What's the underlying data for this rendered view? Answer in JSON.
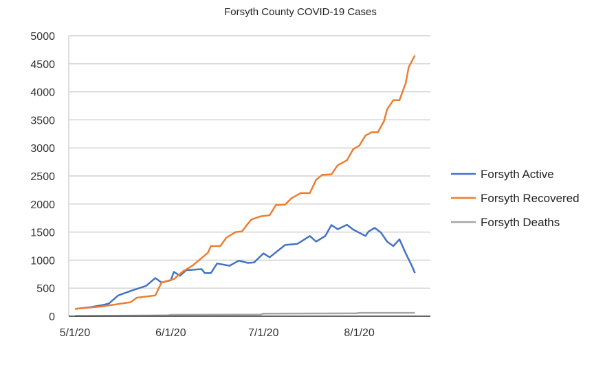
{
  "chart_data": {
    "type": "line",
    "title": "Forsyth County COVID-19 Cases",
    "xlabel": "",
    "ylabel": "",
    "ylim": [
      0,
      5000
    ],
    "yticks": [
      0,
      500,
      1000,
      1500,
      2000,
      2500,
      3000,
      3500,
      4000,
      4500,
      5000
    ],
    "xticks": [
      "5/1/20",
      "6/1/20",
      "7/1/20",
      "8/1/20"
    ],
    "xlim": [
      "4/29/20",
      "8/24/20"
    ],
    "grid": true,
    "legend_position": "right",
    "series": [
      {
        "name": "Forsyth Active",
        "color": "#4472c4",
        "x": [
          "5/1/20",
          "5/6/20",
          "5/10/20",
          "5/12/20",
          "5/15/20",
          "5/19/20",
          "5/24/20",
          "5/27/20",
          "5/29/20",
          "6/1/20",
          "6/2/20",
          "6/4/20",
          "6/6/20",
          "6/11/20",
          "6/12/20",
          "6/14/20",
          "6/16/20",
          "6/20/20",
          "6/23/20",
          "6/26/20",
          "6/28/20",
          "7/1/20",
          "7/3/20",
          "7/8/20",
          "7/12/20",
          "7/16/20",
          "7/18/20",
          "7/21/20",
          "7/23/20",
          "7/25/20",
          "7/28/20",
          "7/30/20",
          "8/3/20",
          "8/4/20",
          "8/6/20",
          "8/8/20",
          "8/10/20",
          "8/12/20",
          "8/14/20",
          "8/16/20",
          "8/18/20",
          "8/19/20"
        ],
        "y": [
          130,
          160,
          200,
          225,
          370,
          450,
          540,
          680,
          600,
          640,
          790,
          720,
          820,
          840,
          770,
          770,
          940,
          900,
          990,
          950,
          960,
          1120,
          1050,
          1270,
          1290,
          1430,
          1330,
          1430,
          1625,
          1550,
          1630,
          1545,
          1430,
          1510,
          1575,
          1490,
          1330,
          1250,
          1370,
          1125,
          900,
          770
        ]
      },
      {
        "name": "Forsyth Recovered",
        "color": "#ed7d31",
        "x": [
          "5/1/20",
          "5/10/20",
          "5/19/20",
          "5/21/20",
          "5/27/20",
          "5/29/20",
          "6/2/20",
          "6/5/20",
          "6/8/20",
          "6/13/20",
          "6/14/20",
          "6/17/20",
          "6/19/20",
          "6/22/20",
          "6/24/20",
          "6/27/20",
          "6/30/20",
          "7/3/20",
          "7/5/20",
          "7/8/20",
          "7/10/20",
          "7/13/20",
          "7/16/20",
          "7/18/20",
          "7/20/20",
          "7/23/20",
          "7/25/20",
          "7/28/20",
          "7/30/20",
          "8/1/20",
          "8/3/20",
          "8/5/20",
          "8/7/20",
          "8/9/20",
          "8/10/20",
          "8/12/20",
          "8/14/20",
          "8/16/20",
          "8/17/20",
          "8/19/20"
        ],
        "y": [
          130,
          175,
          250,
          330,
          370,
          600,
          660,
          800,
          900,
          1130,
          1250,
          1250,
          1400,
          1500,
          1510,
          1720,
          1780,
          1800,
          1980,
          1990,
          2100,
          2195,
          2195,
          2430,
          2520,
          2530,
          2690,
          2780,
          2975,
          3040,
          3220,
          3280,
          3280,
          3480,
          3690,
          3850,
          3850,
          4150,
          4440,
          4650
        ]
      },
      {
        "name": "Forsyth Deaths",
        "color": "#a5a5a5",
        "x": [
          "5/1/20",
          "5/31/20",
          "6/1/20",
          "6/30/20",
          "7/1/20",
          "7/31/20",
          "8/1/20",
          "8/19/20"
        ],
        "y": [
          5,
          15,
          25,
          30,
          45,
          50,
          60,
          60
        ]
      }
    ]
  }
}
